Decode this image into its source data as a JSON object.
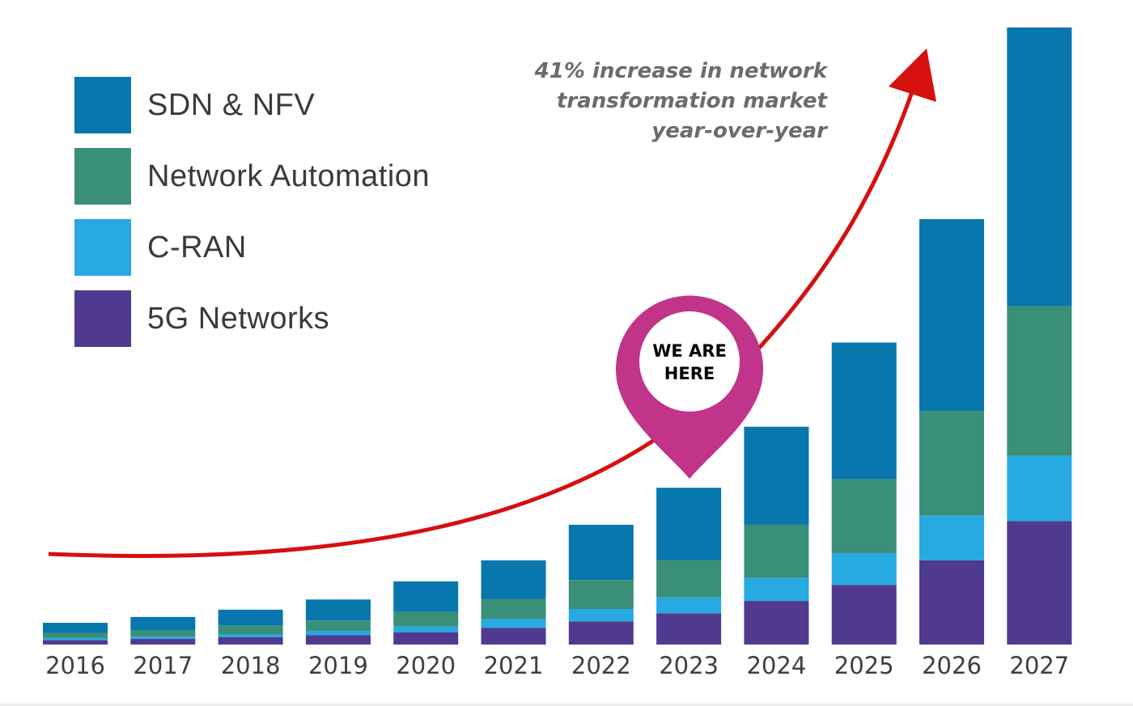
{
  "legend": [
    {
      "label": "SDN & NFV",
      "color": "#0777ad"
    },
    {
      "label": "Network Automation",
      "color": "#3a8f78"
    },
    {
      "label": "C-RAN",
      "color": "#27a9e1"
    },
    {
      "label": "5G Networks",
      "color": "#4f3a90"
    }
  ],
  "annotation": {
    "line1": "41% increase in network",
    "line2": "transformation market",
    "line3": "year-over-year"
  },
  "marker": {
    "line1": "WE ARE",
    "line2": "HERE",
    "year": "2023",
    "color": "#c2338a"
  },
  "arrow_color": "#d60f0f",
  "chart_data": {
    "type": "bar",
    "stacked": true,
    "categories": [
      "2016",
      "2017",
      "2018",
      "2019",
      "2020",
      "2021",
      "2022",
      "2023",
      "2024",
      "2025",
      "2026",
      "2027"
    ],
    "series": [
      {
        "name": "5G Networks",
        "values": [
          6,
          8,
          10,
          13,
          17,
          23,
          32,
          43,
          60,
          82,
          116,
          170
        ],
        "color": "#4f3a90"
      },
      {
        "name": "C-RAN",
        "values": [
          3,
          3,
          4,
          6,
          8,
          12,
          17,
          22,
          32,
          44,
          62,
          90
        ],
        "color": "#27a9e1"
      },
      {
        "name": "Network Automation",
        "values": [
          7,
          9,
          12,
          14,
          20,
          28,
          40,
          51,
          73,
          102,
          144,
          206
        ],
        "color": "#3a8f78"
      },
      {
        "name": "SDN & NFV",
        "values": [
          14,
          18,
          22,
          29,
          42,
          53,
          76,
          100,
          135,
          188,
          264,
          384
        ],
        "color": "#0777ad"
      }
    ],
    "ylim": [
      0,
      850
    ],
    "grid": false,
    "legend_position": "top-left"
  }
}
